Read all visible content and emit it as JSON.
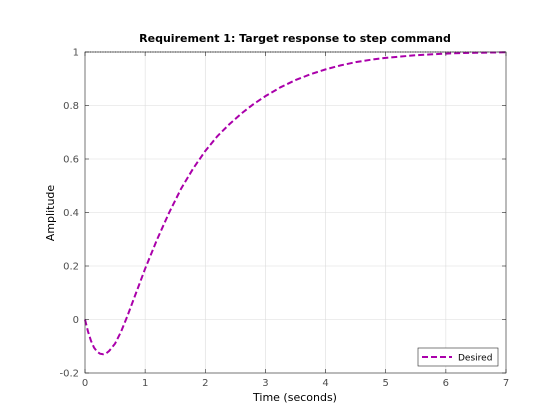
{
  "chart_data": {
    "type": "line",
    "title": "Requirement 1: Target response to step command",
    "xlabel": "Time (seconds)",
    "ylabel": "Amplitude",
    "xlim": [
      0,
      7
    ],
    "ylim": [
      -0.2,
      1
    ],
    "x_ticks": [
      0,
      1,
      2,
      3,
      4,
      5,
      6,
      7
    ],
    "x_tick_labels": [
      "0",
      "1",
      "2",
      "3",
      "4",
      "5",
      "6",
      "7"
    ],
    "y_ticks": [
      -0.2,
      0,
      0.2,
      0.4,
      0.6,
      0.8,
      1
    ],
    "y_tick_labels": [
      "-0.2",
      "0",
      "0.2",
      "0.4",
      "0.6",
      "0.8",
      "1"
    ],
    "grid": true,
    "legend_position": "bottom-right",
    "series": [
      {
        "name": "Desired",
        "color": "#aa00aa",
        "style": "dashed",
        "x": [
          0,
          0.05,
          0.1,
          0.15,
          0.2,
          0.25,
          0.3,
          0.35,
          0.4,
          0.5,
          0.6,
          0.7,
          0.8,
          0.9,
          1.0,
          1.2,
          1.4,
          1.6,
          1.8,
          2.0,
          2.2,
          2.4,
          2.6,
          2.8,
          3.0,
          3.25,
          3.5,
          3.75,
          4.0,
          4.25,
          4.5,
          4.75,
          5.0,
          5.25,
          5.5,
          5.75,
          6.0,
          6.25,
          6.5,
          6.75,
          7.0
        ],
        "y": [
          0,
          -0.045,
          -0.08,
          -0.105,
          -0.12,
          -0.128,
          -0.13,
          -0.127,
          -0.118,
          -0.09,
          -0.045,
          0.01,
          0.07,
          0.13,
          0.19,
          0.3,
          0.4,
          0.49,
          0.565,
          0.63,
          0.685,
          0.73,
          0.77,
          0.805,
          0.835,
          0.868,
          0.895,
          0.917,
          0.935,
          0.95,
          0.962,
          0.971,
          0.978,
          0.983,
          0.988,
          0.991,
          0.994,
          0.996,
          0.997,
          0.998,
          0.999
        ]
      }
    ],
    "reference_line": {
      "y": 1,
      "color": "#000000",
      "style": "dotted"
    }
  }
}
